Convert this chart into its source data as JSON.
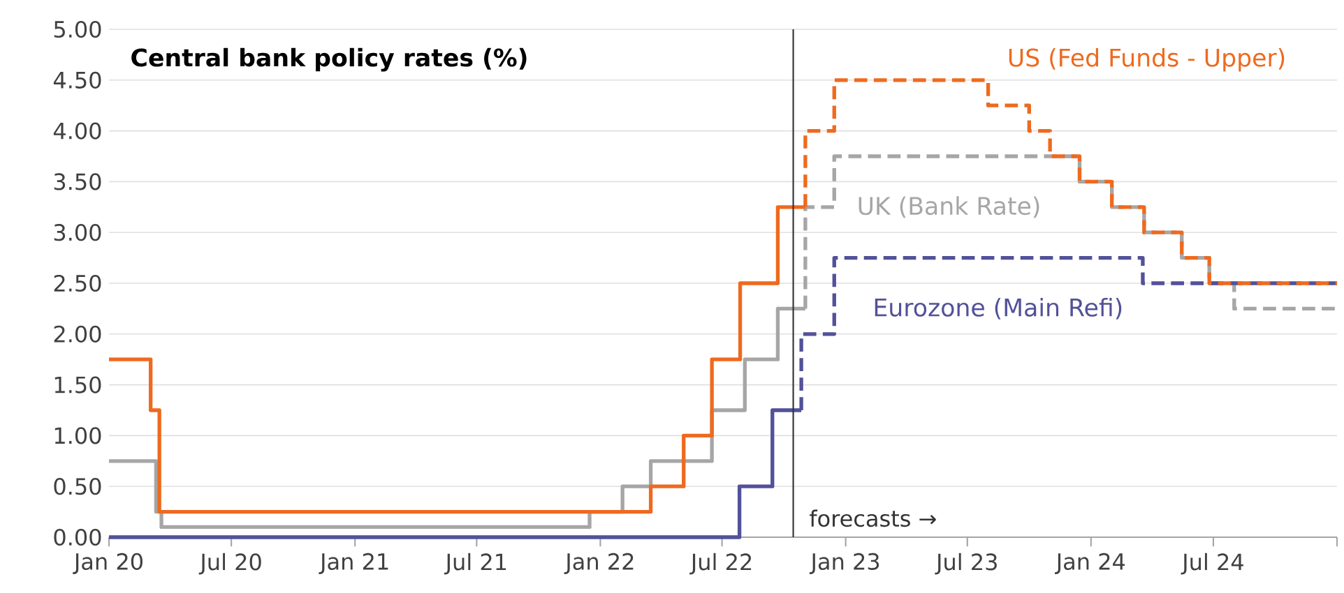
{
  "chart_data": {
    "type": "step",
    "title": "Central bank policy rates (%)",
    "xlim": [
      "2020-01-01",
      "2025-01-01"
    ],
    "xticks": [
      {
        "value": "2020-01-01",
        "label": "Jan 20"
      },
      {
        "value": "2020-07-01",
        "label": "Jul 20"
      },
      {
        "value": "2021-01-01",
        "label": "Jan 21"
      },
      {
        "value": "2021-07-01",
        "label": "Jul 21"
      },
      {
        "value": "2022-01-01",
        "label": "Jan 22"
      },
      {
        "value": "2022-07-01",
        "label": "Jul 22"
      },
      {
        "value": "2023-01-01",
        "label": "Jan 23"
      },
      {
        "value": "2023-07-01",
        "label": "Jul 23"
      },
      {
        "value": "2024-01-01",
        "label": "Jan 24"
      },
      {
        "value": "2024-07-01",
        "label": "Jul 24"
      },
      {
        "value": "2025-01-01",
        "label": null
      }
    ],
    "ylim": [
      0,
      5
    ],
    "yticks": [
      {
        "value": 0,
        "label": "0.00"
      },
      {
        "value": 0.5,
        "label": "0.50"
      },
      {
        "value": 1,
        "label": "1.00"
      },
      {
        "value": 1.5,
        "label": "1.50"
      },
      {
        "value": 2,
        "label": "2.00"
      },
      {
        "value": 2.5,
        "label": "2.50"
      },
      {
        "value": 3,
        "label": "3.00"
      },
      {
        "value": 3.5,
        "label": "3.50"
      },
      {
        "value": 4,
        "label": "4.00"
      },
      {
        "value": 4.5,
        "label": "4.50"
      },
      {
        "value": 5,
        "label": "5.00"
      }
    ],
    "grid": "y",
    "ref_lines": [
      {
        "axis": "x",
        "value": "2022-10-15",
        "label": "forecasts →",
        "color": "#333333"
      }
    ],
    "series": [
      {
        "color": "#a6a6a6",
        "line_style": "solid",
        "x": [
          "2020-01-01",
          "2020-03-11",
          "2020-03-19",
          "2021-12-16",
          "2022-02-03",
          "2022-03-17",
          "2022-05-05",
          "2022-06-16",
          "2022-08-04",
          "2022-09-22",
          "2022-11-02"
        ],
        "values": [
          0.75,
          0.25,
          0.1,
          0.25,
          0.5,
          0.75,
          null,
          1.25,
          1.75,
          2.25,
          2.25
        ]
      },
      {
        "name": "UK (Bank Rate)",
        "color": "#a6a6a6",
        "line_style": "dashed",
        "x": [
          "2022-11-02",
          "2022-11-02",
          "2022-12-15",
          "2023-12-15",
          "2024-02-01",
          "2024-03-20",
          "2024-05-15",
          "2024-06-25",
          "2024-08-01",
          "2025-01-01"
        ],
        "values": [
          2.25,
          3.25,
          3.75,
          3.5,
          3.25,
          3.0,
          2.75,
          2.5,
          2.25,
          2.25
        ]
      },
      {
        "color": "#525199",
        "line_style": "solid",
        "x": [
          "2020-01-01",
          "2022-07-27",
          "2022-09-14",
          "2022-10-27"
        ],
        "values": [
          0,
          0.5,
          1.25,
          1.25
        ]
      },
      {
        "name": "Eurozone (Main Refi)",
        "color": "#525199",
        "line_style": "dashed",
        "x": [
          "2022-10-27",
          "2022-10-27",
          "2022-12-15",
          "2024-03-18",
          "2025-01-01"
        ],
        "values": [
          1.25,
          2.0,
          2.75,
          2.5,
          2.5
        ]
      },
      {
        "color": "#ee6a1f",
        "line_style": "solid",
        "x": [
          "2020-01-01",
          "2020-03-03",
          "2020-03-16",
          "2022-03-17",
          "2022-05-05",
          "2022-06-16",
          "2022-07-28",
          "2022-09-22",
          "2022-11-02"
        ],
        "values": [
          1.75,
          1.25,
          0.25,
          0.5,
          1.0,
          1.75,
          2.5,
          3.25,
          3.25
        ]
      },
      {
        "name": "US (Fed Funds - Upper)",
        "color": "#ee6a1f",
        "line_style": "dashed",
        "x": [
          "2022-11-02",
          "2022-11-02",
          "2022-12-15",
          "2023-08-01",
          "2023-10-01",
          "2023-11-01",
          "2023-12-15",
          "2024-02-01",
          "2024-03-20",
          "2024-05-15",
          "2024-06-25",
          "2025-01-01"
        ],
        "values": [
          3.25,
          4.0,
          4.5,
          4.25,
          4.0,
          3.75,
          3.5,
          3.25,
          3.0,
          2.75,
          2.5,
          2.5
        ]
      }
    ]
  }
}
